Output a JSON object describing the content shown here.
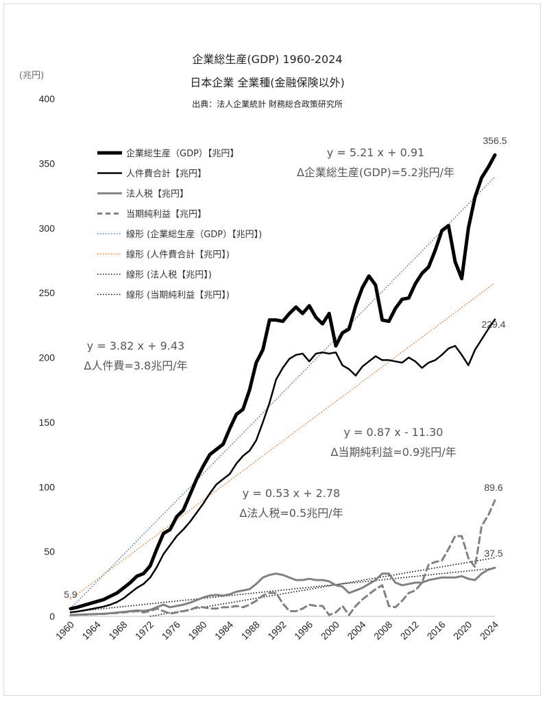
{
  "chart_data": {
    "type": "line",
    "title": "企業総生産(GDP) 1960-2024",
    "subtitle": "日本企業 全業種(金融保険以外)",
    "source": "出典：法人企業統計 財務総合政策研究所",
    "ylabel": "(兆円)",
    "xlabel": "",
    "ylim": [
      0,
      400
    ],
    "xlim": [
      1960,
      2024
    ],
    "yticks": [
      0,
      50,
      100,
      150,
      200,
      250,
      300,
      350,
      400
    ],
    "yticks_labels": [
      "0",
      "50",
      "100",
      "150",
      "200",
      "250",
      "300",
      "350",
      "400"
    ],
    "xticks": [
      1960,
      1964,
      1968,
      1972,
      1976,
      1980,
      1984,
      1988,
      1992,
      1996,
      2000,
      2004,
      2008,
      2012,
      2016,
      2020,
      2024
    ],
    "xticks_labels": [
      "1960",
      "1964",
      "1968",
      "1972",
      "1976",
      "1980",
      "1984",
      "1988",
      "1992",
      "1996",
      "2000",
      "2004",
      "2008",
      "2012",
      "2016",
      "2020",
      "2024"
    ],
    "grid": false,
    "legend_position": "top-left",
    "series": [
      {
        "name": "企業総生産（GDP）【兆円】",
        "color": "#000000",
        "style": "solid",
        "x": [
          1960,
          1961,
          1962,
          1963,
          1964,
          1965,
          1966,
          1967,
          1968,
          1969,
          1970,
          1971,
          1972,
          1973,
          1974,
          1975,
          1976,
          1977,
          1978,
          1979,
          1980,
          1981,
          1982,
          1983,
          1984,
          1985,
          1986,
          1987,
          1988,
          1989,
          1990,
          1991,
          1992,
          1993,
          1994,
          1995,
          1996,
          1997,
          1998,
          1999,
          2000,
          2001,
          2002,
          2003,
          2004,
          2005,
          2006,
          2007,
          2008,
          2009,
          2010,
          2011,
          2012,
          2013,
          2014,
          2015,
          2016,
          2017,
          2018,
          2019,
          2020,
          2021,
          2022,
          2023,
          2024
        ],
        "values": [
          5.9,
          7,
          8.5,
          10,
          11.5,
          13,
          15.5,
          18,
          22,
          26,
          31,
          33,
          39,
          52,
          64,
          67,
          77,
          82,
          94,
          106,
          116,
          125,
          129,
          133,
          145,
          156,
          160,
          175,
          196,
          206,
          229,
          229,
          228,
          234,
          239,
          234,
          240,
          231,
          226,
          234,
          209,
          219,
          222,
          240,
          254,
          263,
          256,
          229,
          228,
          238,
          245,
          246,
          257,
          265,
          270,
          283,
          298,
          302,
          274,
          261,
          300,
          324,
          339,
          347,
          356.5
        ]
      },
      {
        "name": "人件費合計【兆円】",
        "color": "#000000",
        "style": "solid",
        "x": [
          1960,
          1961,
          1962,
          1963,
          1964,
          1965,
          1966,
          1967,
          1968,
          1969,
          1970,
          1971,
          1972,
          1973,
          1974,
          1975,
          1976,
          1977,
          1978,
          1979,
          1980,
          1981,
          1982,
          1983,
          1984,
          1985,
          1986,
          1987,
          1988,
          1989,
          1990,
          1991,
          1992,
          1993,
          1994,
          1995,
          1996,
          1997,
          1998,
          1999,
          2000,
          2001,
          2002,
          2003,
          2004,
          2005,
          2006,
          2007,
          2008,
          2009,
          2010,
          2011,
          2012,
          2013,
          2014,
          2015,
          2016,
          2017,
          2018,
          2019,
          2020,
          2021,
          2022,
          2023,
          2024
        ],
        "values": [
          3,
          3.7,
          4.5,
          5.5,
          6.5,
          7.5,
          9,
          11,
          14,
          18,
          22,
          25,
          30,
          38,
          48,
          55,
          62,
          67,
          73,
          80,
          87,
          95,
          102,
          106,
          110,
          118,
          124,
          128,
          136,
          150,
          165,
          183,
          192,
          199,
          202,
          203,
          197,
          203,
          204,
          203,
          204,
          194,
          191,
          186,
          193,
          197,
          201,
          198,
          198,
          197,
          196,
          200,
          197,
          192,
          196,
          198,
          202,
          207,
          209,
          202,
          194,
          206,
          214,
          222,
          229.4
        ]
      },
      {
        "name": "法人税【兆円】",
        "color": "#808080",
        "style": "solid",
        "x": [
          1960,
          1961,
          1962,
          1963,
          1964,
          1965,
          1966,
          1967,
          1968,
          1969,
          1970,
          1971,
          1972,
          1973,
          1974,
          1975,
          1976,
          1977,
          1978,
          1979,
          1980,
          1981,
          1982,
          1983,
          1984,
          1985,
          1986,
          1987,
          1988,
          1989,
          1990,
          1991,
          1992,
          1993,
          1994,
          1995,
          1996,
          1997,
          1998,
          1999,
          2000,
          2001,
          2002,
          2003,
          2004,
          2005,
          2006,
          2007,
          2008,
          2009,
          2010,
          2011,
          2012,
          2013,
          2014,
          2015,
          2016,
          2017,
          2018,
          2019,
          2020,
          2021,
          2022,
          2023,
          2024
        ],
        "values": [
          1,
          1.2,
          1.4,
          1.6,
          1.8,
          2,
          2.4,
          2.9,
          3.4,
          4,
          4.5,
          4.2,
          5,
          7,
          9,
          7,
          8,
          9,
          10.5,
          12.5,
          14.5,
          16,
          16.5,
          16,
          17,
          19,
          20,
          21,
          25,
          30,
          32,
          33,
          32,
          30,
          28,
          28,
          29,
          28,
          28,
          27,
          24,
          23,
          18,
          20,
          22,
          25,
          28,
          33,
          33,
          26,
          24,
          25,
          26,
          26,
          28,
          29,
          30,
          30,
          30,
          31,
          29,
          28,
          33,
          36,
          37.5
        ]
      },
      {
        "name": "当期純利益【兆円】",
        "color": "#808080",
        "style": "dashed",
        "x": [
          1960,
          1961,
          1962,
          1963,
          1964,
          1965,
          1966,
          1967,
          1968,
          1969,
          1970,
          1971,
          1972,
          1973,
          1974,
          1975,
          1976,
          1977,
          1978,
          1979,
          1980,
          1981,
          1982,
          1983,
          1984,
          1985,
          1986,
          1987,
          1988,
          1989,
          1990,
          1991,
          1992,
          1993,
          1994,
          1995,
          1996,
          1997,
          1998,
          1999,
          2000,
          2001,
          2002,
          2003,
          2004,
          2005,
          2006,
          2007,
          2008,
          2009,
          2010,
          2011,
          2012,
          2013,
          2014,
          2015,
          2016,
          2017,
          2018,
          2019,
          2020,
          2021,
          2022,
          2023,
          2024
        ],
        "values": [
          1,
          1.2,
          1.3,
          1.5,
          1.7,
          1.8,
          2.2,
          2.6,
          3,
          3.5,
          4,
          3,
          4,
          6,
          4,
          2,
          3,
          4,
          5,
          7,
          7,
          6,
          6,
          7,
          7,
          8,
          7,
          9,
          12,
          16,
          18,
          18,
          10,
          4,
          4,
          6,
          9,
          8,
          8,
          1,
          3,
          8,
          1,
          8,
          13,
          17,
          21,
          24,
          8,
          7,
          12,
          18,
          20,
          26,
          40,
          42,
          43,
          52,
          62,
          62,
          45,
          38,
          70,
          78,
          89.6
        ]
      }
    ],
    "trendlines": [
      {
        "name": "線形 (企業総生産（GDP）【兆円】)",
        "slope": 5.21,
        "intercept": 0.91,
        "color": "#4472c4"
      },
      {
        "name": "線形 (人件費合計【兆円】)",
        "slope": 3.82,
        "intercept": 9.43,
        "color": "#ed7d31"
      },
      {
        "name": "線形 (法人税【兆円】)",
        "slope": 0.53,
        "intercept": 2.78,
        "color": "#000000"
      },
      {
        "name": "線形 (当期純利益【兆円】)",
        "slope": 0.87,
        "intercept": -11.3,
        "color": "#000000"
      }
    ],
    "annotations": [
      {
        "line1": "y = 5.21 x + 0.91",
        "line2": "Δ企業総生産(GDP)=5.2兆円/年"
      },
      {
        "line1": "y = 3.82 x + 9.43",
        "line2": "Δ人件費=3.8兆円/年"
      },
      {
        "line1": "y = 0.87 x - 11.30",
        "line2": "Δ当期純利益=0.9兆円/年"
      },
      {
        "line1": "y = 0.53 x + 2.78",
        "line2": "Δ法人税=0.5兆円/年"
      }
    ],
    "end_labels": [
      "356.5",
      "229.4",
      "89.6",
      "37.5"
    ],
    "start_label": "5.9"
  }
}
